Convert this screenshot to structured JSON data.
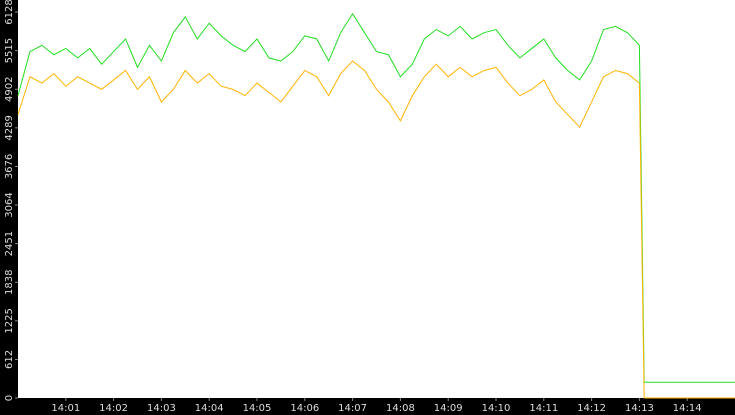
{
  "chart_data": {
    "type": "line",
    "x": [
      0,
      0.25,
      0.5,
      0.75,
      1,
      1.25,
      1.5,
      1.75,
      2,
      2.25,
      2.5,
      2.75,
      3,
      3.25,
      3.5,
      3.75,
      4,
      4.25,
      4.5,
      4.75,
      5,
      5.25,
      5.5,
      5.75,
      6,
      6.25,
      6.5,
      6.75,
      7,
      7.25,
      7.5,
      7.75,
      8,
      8.25,
      8.5,
      8.75,
      9,
      9.25,
      9.5,
      9.75,
      10,
      10.25,
      10.5,
      10.75,
      11,
      11.25,
      11.5,
      11.75,
      12,
      12.25,
      12.5,
      12.75,
      13,
      13.1,
      15
    ],
    "series": [
      {
        "color": "#22dd22",
        "values": [
          4800,
          5500,
          5600,
          5450,
          5550,
          5400,
          5550,
          5300,
          5500,
          5700,
          5250,
          5600,
          5350,
          5800,
          6050,
          5700,
          5950,
          5750,
          5600,
          5500,
          5700,
          5400,
          5350,
          5500,
          5750,
          5700,
          5350,
          5800,
          6100,
          5800,
          5500,
          5450,
          5100,
          5300,
          5700,
          5850,
          5750,
          5900,
          5700,
          5800,
          5850,
          5600,
          5400,
          5550,
          5700,
          5400,
          5200,
          5050,
          5350,
          5850,
          5900,
          5800,
          5600,
          250,
          250
        ]
      },
      {
        "color": "#ffb400",
        "values": [
          4500,
          5100,
          5000,
          5150,
          4950,
          5100,
          5000,
          4900,
          5050,
          5200,
          4900,
          5100,
          4700,
          4900,
          5200,
          5000,
          5150,
          4950,
          4900,
          4800,
          5000,
          4850,
          4700,
          4950,
          5200,
          5100,
          4800,
          5150,
          5350,
          5200,
          4900,
          4700,
          4400,
          4800,
          5100,
          5300,
          5100,
          5250,
          5100,
          5200,
          5250,
          5000,
          4800,
          4900,
          5050,
          4700,
          4500,
          4300,
          4700,
          5100,
          5200,
          5150,
          5000,
          0,
          0
        ]
      }
    ],
    "xlim": [
      0,
      15
    ],
    "xticks": [
      {
        "value": 1,
        "label": "14:01"
      },
      {
        "value": 2,
        "label": "14:02"
      },
      {
        "value": 3,
        "label": "14:03"
      },
      {
        "value": 4,
        "label": "14:04"
      },
      {
        "value": 5,
        "label": "14:05"
      },
      {
        "value": 6,
        "label": "14:06"
      },
      {
        "value": 7,
        "label": "14:07"
      },
      {
        "value": 8,
        "label": "14:08"
      },
      {
        "value": 9,
        "label": "14:09"
      },
      {
        "value": 10,
        "label": "14:10"
      },
      {
        "value": 11,
        "label": "14:11"
      },
      {
        "value": 12,
        "label": "14:12"
      },
      {
        "value": 13,
        "label": "14:13"
      },
      {
        "value": 14,
        "label": "14:14"
      }
    ],
    "ylim": [
      0,
      6319
    ],
    "yticks": [
      0,
      612,
      1225,
      1838,
      2451,
      3064,
      3676,
      4289,
      4902,
      5515,
      6128
    ],
    "grid": false
  }
}
